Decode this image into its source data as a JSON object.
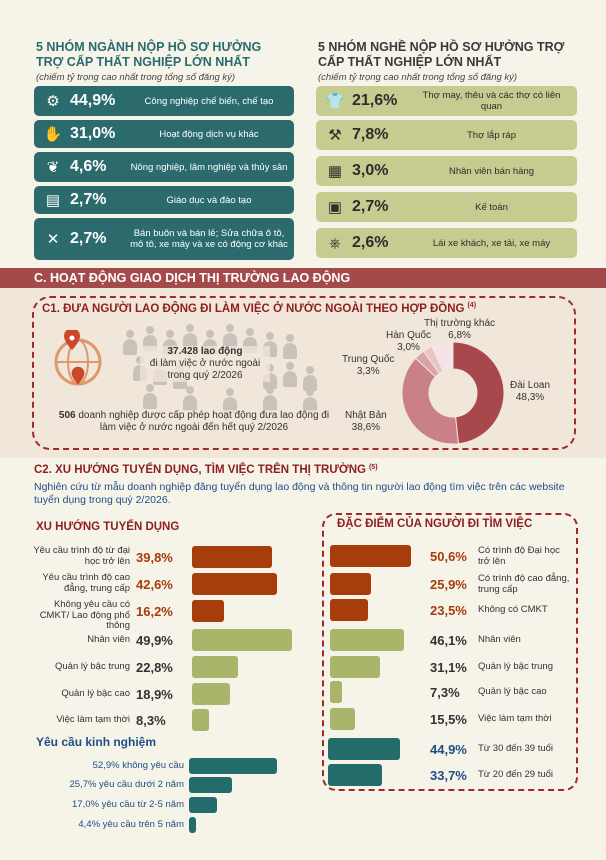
{
  "left_panel": {
    "title_line1": "5 NHÓM NGÀNH NỘP HỒ SƠ HƯỞNG",
    "title_line2": "TRỢ CẤP THẤT NGHIỆP LỚN NHẤT",
    "subtitle": "(chiếm tỷ trọng cao nhất trong tổng số đăng ký)",
    "rows": [
      {
        "pct": "44,9%",
        "label": "Công nghiệp chế biến, chế tạo",
        "icon": "gear-icon"
      },
      {
        "pct": "31,0%",
        "label": "Hoạt động dịch vụ khác",
        "icon": "service-hand-icon"
      },
      {
        "pct": "4,6%",
        "label": "Nông nghiệp, lâm nghiệp và thủy sản",
        "icon": "farming-icon"
      },
      {
        "pct": "2,7%",
        "label": "Giáo dục và đào tạo",
        "icon": "book-icon"
      },
      {
        "pct": "2,7%",
        "label": "Bán buôn và bán lẻ; Sửa chữa ô tô, mô tô, xe máy và xe có động cơ khác",
        "icon": "tools-icon"
      }
    ]
  },
  "right_panel": {
    "title_line1": "5 NHÓM NGHỀ NỘP HỒ SƠ HƯỞNG TRỢ",
    "title_line2": "CẤP THẤT NGHIỆP LỚN NHẤT",
    "subtitle": "(chiếm tỷ trọng cao nhất trong tổng số đăng ký)",
    "rows": [
      {
        "pct": "21,6%",
        "label": "Thợ may, thêu và các thợ có liên quan",
        "icon": "shirt-icon"
      },
      {
        "pct": "7,8%",
        "label": "Thợ lắp ráp",
        "icon": "assembly-icon"
      },
      {
        "pct": "3,0%",
        "label": "Nhân viên bán hàng",
        "icon": "cash-register-icon"
      },
      {
        "pct": "2,7%",
        "label": "Kế toán",
        "icon": "calculator-icon"
      },
      {
        "pct": "2,6%",
        "label": "Lái xe khách, xe tải, xe máy",
        "icon": "steering-wheel-icon"
      }
    ]
  },
  "section_c": {
    "title": "C. HOẠT ĐỘNG GIAO DỊCH THỊ TRƯỜNG LAO ĐỘNG"
  },
  "c1": {
    "title": "C1. ĐƯA NGƯỜI LAO ĐỘNG ĐI LÀM VIỆC Ở NƯỚC NGOÀI THEO HỢP ĐỒNG",
    "note": "(4)",
    "stat1_value": "37.428 lao động",
    "stat1_text": "đi làm việc ở nước ngoài trong quý 2/2026",
    "stat2_value": "506",
    "stat2_text": " doanh nghiệp được cấp phép hoạt động đưa lao động đi làm việc ở nước ngoài đến hết quý 2/2026"
  },
  "chart_data": {
    "type": "pie",
    "categories": [
      "Đài Loan",
      "Nhật Bản",
      "Trung Quốc",
      "Hàn Quốc",
      "Thị trường khác"
    ],
    "values": [
      48.3,
      38.6,
      3.3,
      3.0,
      6.8
    ],
    "value_labels": [
      "48,3%",
      "38,6%",
      "3,3%",
      "3,0%",
      "6,8%"
    ],
    "colors": [
      "#a9484c",
      "#c98088",
      "#dca2aa",
      "#e8c4ca",
      "#f5e3e7"
    ]
  },
  "c2": {
    "title": "C2. XU HƯỚNG TUYỂN DỤNG, TÌM VIỆC TRÊN THỊ TRƯỜNG",
    "note": "(5)",
    "description": "Nghiên cứu từ mẫu doanh nghiệp đăng tuyển dụng lao động và thông tin người lao động tìm việc trên các website tuyển dụng trong quý 2/2026."
  },
  "recruit": {
    "title": "XU HƯỚNG TUYỂN DỤNG",
    "rows": [
      {
        "label": "Yêu cầu trình độ từ đại học trở lên",
        "value": 39.8,
        "pct": "39,8%"
      },
      {
        "label": "Yêu cầu trình độ cao đẳng, trung cấp",
        "value": 42.6,
        "pct": "42,6%"
      },
      {
        "label": "Không yêu cầu có CMKT/ Lao động phổ thông",
        "value": 16.2,
        "pct": "16,2%"
      },
      {
        "label": "Nhân viên",
        "value": 49.9,
        "pct": "49,9%"
      },
      {
        "label": "Quản lý bậc trung",
        "value": 22.8,
        "pct": "22,8%"
      },
      {
        "label": "Quản lý bậc cao",
        "value": 18.9,
        "pct": "18,9%"
      },
      {
        "label": "Việc làm tạm thời",
        "value": 8.3,
        "pct": "8,3%"
      }
    ],
    "exp_title": "Yêu cầu kinh nghiệm",
    "exp_rows": [
      {
        "label": "52,9% không yêu cầu",
        "value": 52.9
      },
      {
        "label": "25,7% yêu cầu dưới 2 năm",
        "value": 25.7
      },
      {
        "label": "17,0% yêu cầu từ 2-5 năm",
        "value": 17.0
      },
      {
        "label": "4,4% yêu cầu trên 5 năm",
        "value": 4.4
      }
    ]
  },
  "seekers": {
    "title": "ĐẶC ĐIỂM CỦA NGƯỜI ĐI TÌM VIỆC",
    "rows": [
      {
        "label": "Có trình độ Đại học trở lên",
        "value": 50.6,
        "pct": "50,6%"
      },
      {
        "label": "Có trình độ cao đẳng, trung cấp",
        "value": 25.9,
        "pct": "25,9%"
      },
      {
        "label": "Không có CMKT",
        "value": 23.5,
        "pct": "23,5%"
      },
      {
        "label": "Nhân viên",
        "value": 46.1,
        "pct": "46,1%"
      },
      {
        "label": "Quản lý bậc trung",
        "value": 31.1,
        "pct": "31,1%"
      },
      {
        "label": "Quản lý bậc cao",
        "value": 7.3,
        "pct": "7,3%"
      },
      {
        "label": "Việc làm tạm thời",
        "value": 15.5,
        "pct": "15,5%"
      },
      {
        "label": "Từ 30 đến 39 tuổi",
        "value": 44.9,
        "pct": "44,9%"
      },
      {
        "label": "Từ 20 đến 29 tuổi",
        "value": 33.7,
        "pct": "33,7%"
      }
    ]
  }
}
